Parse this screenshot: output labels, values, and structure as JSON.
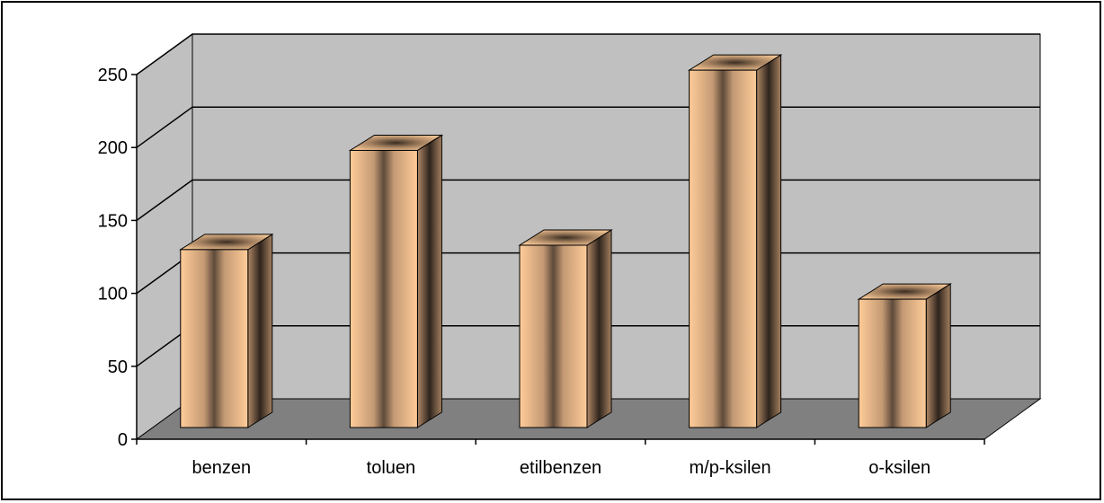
{
  "chart_data": {
    "type": "bar",
    "style": "3d-column",
    "categories": [
      "benzen",
      "toluen",
      "etilbenzen",
      "m/p-ksilen",
      "o-ksilen"
    ],
    "values": [
      122,
      190,
      125,
      245,
      88
    ],
    "ylim": [
      0,
      250
    ],
    "yticks": [
      0,
      50,
      100,
      150,
      200,
      250
    ],
    "title": "",
    "xlabel": "",
    "ylabel": "",
    "grid": true,
    "legend": "none",
    "colors": {
      "wall": "#c0c0c0",
      "floor": "#808080",
      "bar_front": "#ffcc99",
      "bar_dark": "#5e4a3a",
      "gridline": "#000000"
    }
  }
}
